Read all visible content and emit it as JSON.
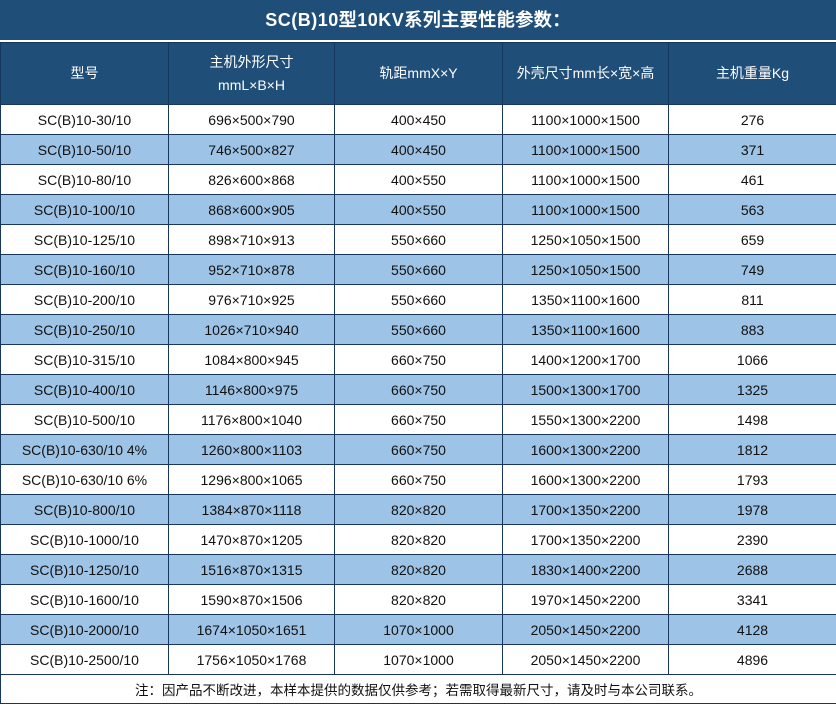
{
  "title": "SC(B)10型10KV系列主要性能参数：",
  "colors": {
    "header_bg": "#1F4E79",
    "row_alt_bg": "#9DC3E6",
    "row_bg": "#FFFFFF",
    "border": "#16365C",
    "header_text": "#FFFFFF",
    "body_text": "#111111"
  },
  "table": {
    "columns": [
      {
        "label": "型号"
      },
      {
        "label": "主机外形尺寸\nmmL×B×H"
      },
      {
        "label": "轨距mmX×Y"
      },
      {
        "label": "外壳尺寸mm长×宽×高"
      },
      {
        "label": "主机重量Kg"
      }
    ],
    "rows": [
      [
        "SC(B)10-30/10",
        "696×500×790",
        "400×450",
        "1100×1000×1500",
        "276"
      ],
      [
        "SC(B)10-50/10",
        "746×500×827",
        "400×450",
        "1100×1000×1500",
        "371"
      ],
      [
        "SC(B)10-80/10",
        "826×600×868",
        "400×550",
        "1100×1000×1500",
        "461"
      ],
      [
        "SC(B)10-100/10",
        "868×600×905",
        "400×550",
        "1100×1000×1500",
        "563"
      ],
      [
        "SC(B)10-125/10",
        "898×710×913",
        "550×660",
        "1250×1050×1500",
        "659"
      ],
      [
        "SC(B)10-160/10",
        "952×710×878",
        "550×660",
        "1250×1050×1500",
        "749"
      ],
      [
        "SC(B)10-200/10",
        "976×710×925",
        "550×660",
        "1350×1100×1600",
        "811"
      ],
      [
        "SC(B)10-250/10",
        "1026×710×940",
        "550×660",
        "1350×1100×1600",
        "883"
      ],
      [
        "SC(B)10-315/10",
        "1084×800×945",
        "660×750",
        "1400×1200×1700",
        "1066"
      ],
      [
        "SC(B)10-400/10",
        "1146×800×975",
        "660×750",
        "1500×1300×1700",
        "1325"
      ],
      [
        "SC(B)10-500/10",
        "1176×800×1040",
        "660×750",
        "1550×1300×2200",
        "1498"
      ],
      [
        "SC(B)10-630/10 4%",
        "1260×800×1103",
        "660×750",
        "1600×1300×2200",
        "1812"
      ],
      [
        "SC(B)10-630/10 6%",
        "1296×800×1065",
        "660×750",
        "1600×1300×2200",
        "1793"
      ],
      [
        "SC(B)10-800/10",
        "1384×870×1118",
        "820×820",
        "1700×1350×2200",
        "1978"
      ],
      [
        "SC(B)10-1000/10",
        "1470×870×1205",
        "820×820",
        "1700×1350×2200",
        "2390"
      ],
      [
        "SC(B)10-1250/10",
        "1516×870×1315",
        "820×820",
        "1830×1400×2200",
        "2688"
      ],
      [
        "SC(B)10-1600/10",
        "1590×870×1506",
        "820×820",
        "1970×1450×2200",
        "3341"
      ],
      [
        "SC(B)10-2000/10",
        "1674×1050×1651",
        "1070×1000",
        "2050×1450×2200",
        "4128"
      ],
      [
        "SC(B)10-2500/10",
        "1756×1050×1768",
        "1070×1000",
        "2050×1450×2200",
        "4896"
      ]
    ]
  },
  "footer_note": "注：因产品不断改进，本样本提供的数据仅供参考；若需取得最新尺寸，请及时与本公司联系。"
}
